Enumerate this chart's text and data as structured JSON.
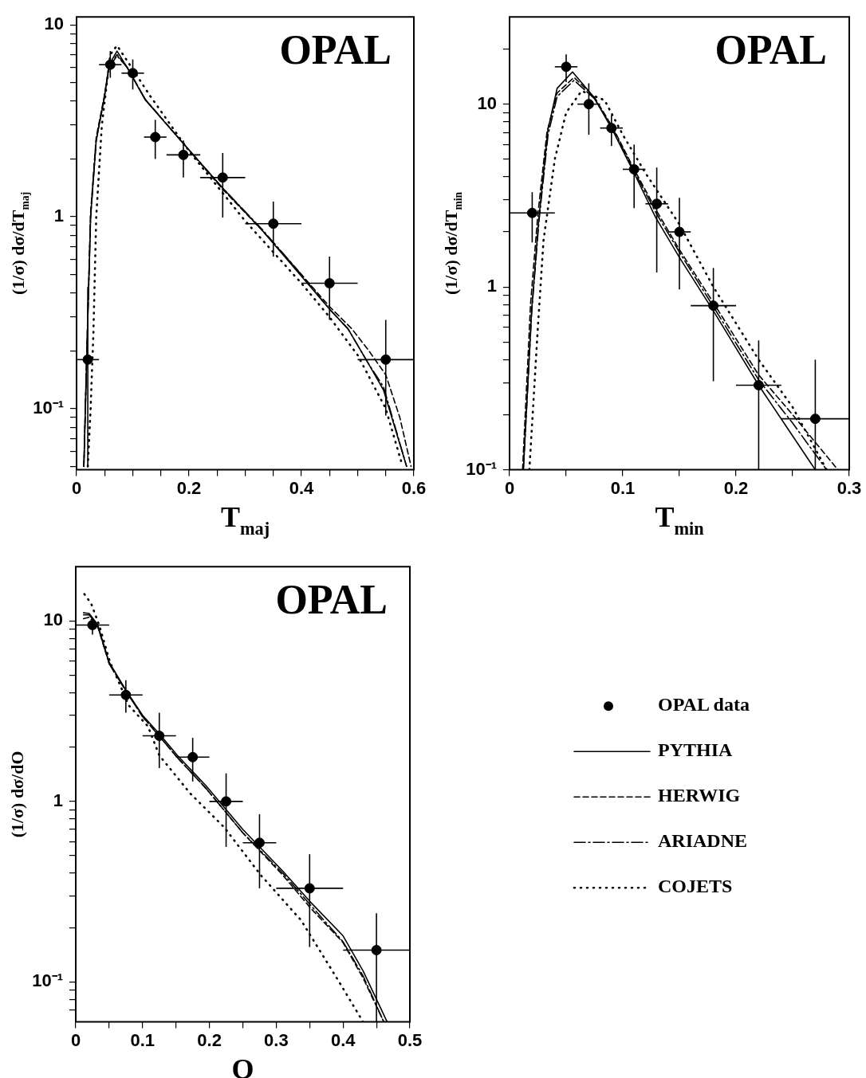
{
  "chart_data": [
    {
      "type": "line",
      "xlabel": "T$_{maj}$",
      "ylabel": "(1/σ) dσ/dT$_{maj}$",
      "annotations": [
        "OPAL"
      ],
      "log": "y",
      "xlim": [
        0,
        0.6
      ],
      "ylim": [
        0.048,
        11
      ],
      "xticks": [
        0,
        {
          "value": 0.05,
          "label": null
        },
        {
          "value": 0.1,
          "label": null
        },
        {
          "value": 0.15,
          "label": null
        },
        0.2,
        {
          "value": 0.25,
          "label": null
        },
        {
          "value": 0.3,
          "label": null
        },
        {
          "value": 0.35,
          "label": null
        },
        0.4,
        {
          "value": 0.45,
          "label": null
        },
        {
          "value": 0.5,
          "label": null
        },
        {
          "value": 0.55,
          "label": null
        },
        0.6
      ],
      "yticks": [
        {
          "value": 0.05,
          "label": null
        },
        {
          "value": 0.06,
          "label": null
        },
        {
          "value": 0.07,
          "label": null
        },
        {
          "value": 0.08,
          "label": null
        },
        {
          "value": 0.09,
          "label": null
        },
        {
          "value": 0.1,
          "label": "10⁻¹"
        },
        {
          "value": 0.2,
          "label": null
        },
        {
          "value": 0.3,
          "label": null
        },
        {
          "value": 0.4,
          "label": null
        },
        {
          "value": 0.5,
          "label": null
        },
        {
          "value": 0.6,
          "label": null
        },
        {
          "value": 0.7,
          "label": null
        },
        {
          "value": 0.8,
          "label": null
        },
        {
          "value": 0.9,
          "label": null
        },
        {
          "value": 1,
          "label": "1"
        },
        {
          "value": 2,
          "label": null
        },
        {
          "value": 3,
          "label": null
        },
        {
          "value": 4,
          "label": null
        },
        {
          "value": 5,
          "label": null
        },
        {
          "value": 6,
          "label": null
        },
        {
          "value": 7,
          "label": null
        },
        {
          "value": 8,
          "label": null
        },
        {
          "value": 9,
          "label": null
        },
        {
          "value": 10,
          "label": "10"
        }
      ],
      "series": [
        {
          "type": "scatter",
          "marker": "circle",
          "color": "#000000",
          "x": [
            0.02,
            0.06,
            0.1,
            0.14,
            0.19,
            0.26,
            0.35,
            0.45,
            0.55
          ],
          "values": [
            0.18,
            6.2,
            5.6,
            2.6,
            2.1,
            1.6,
            0.92,
            0.45,
            0.18
          ],
          "errors": [
            [
              0.05,
              0.43
            ],
            [
              5.3,
              7.3
            ],
            [
              4.6,
              6.6
            ],
            [
              2.0,
              3.2
            ],
            [
              1.6,
              2.5
            ],
            [
              0.99,
              2.15
            ],
            [
              0.62,
              1.2
            ],
            [
              0.29,
              0.62
            ],
            [
              0.092,
              0.29
            ]
          ],
          "xerrors": [
            [
              0,
              0.04
            ],
            [
              0.04,
              0.08
            ],
            [
              0.08,
              0.12
            ],
            [
              0.12,
              0.16
            ],
            [
              0.16,
              0.22
            ],
            [
              0.22,
              0.3
            ],
            [
              0.3,
              0.4
            ],
            [
              0.4,
              0.5
            ],
            [
              0.5,
              0.6
            ]
          ]
        },
        {
          "line_style": "solid",
          "color": "#000000",
          "x": [
            0.013,
            0.018,
            0.025,
            0.035,
            0.049,
            0.058,
            0.072,
            0.09,
            0.122,
            0.18,
            0.259,
            0.33,
            0.39,
            0.45,
            0.483,
            0.52,
            0.546,
            0.587
          ],
          "values": [
            0.05,
            0.18,
            1.0,
            2.5,
            4.1,
            6.2,
            7.3,
            6.0,
            4.07,
            2.6,
            1.42,
            0.85,
            0.53,
            0.33,
            0.26,
            0.17,
            0.125,
            0.05
          ]
        },
        {
          "line_style": "dashed",
          "color": "#000000",
          "x": [
            0.013,
            0.018,
            0.025,
            0.035,
            0.049,
            0.058,
            0.072,
            0.09,
            0.122,
            0.18,
            0.259,
            0.33,
            0.39,
            0.45,
            0.49,
            0.52,
            0.55,
            0.575,
            0.595
          ],
          "values": [
            0.05,
            0.19,
            1.05,
            2.6,
            4.2,
            6.1,
            7.0,
            6.0,
            4.1,
            2.6,
            1.4,
            0.85,
            0.54,
            0.34,
            0.26,
            0.2,
            0.15,
            0.09,
            0.05
          ]
        },
        {
          "line_style": "dashdot",
          "color": "#000000",
          "x": [
            0.013,
            0.018,
            0.025,
            0.035,
            0.049,
            0.058,
            0.072,
            0.09,
            0.122,
            0.18,
            0.259,
            0.33,
            0.39,
            0.45,
            0.483,
            0.52,
            0.546,
            0.587
          ],
          "values": [
            0.05,
            0.18,
            1.0,
            2.5,
            4.1,
            6.0,
            6.9,
            6.0,
            4.1,
            2.6,
            1.42,
            0.86,
            0.54,
            0.33,
            0.26,
            0.17,
            0.13,
            0.05
          ]
        },
        {
          "line_style": "dotted",
          "color": "#000000",
          "x": [
            0.02,
            0.025,
            0.03,
            0.035,
            0.045,
            0.06,
            0.072,
            0.09,
            0.13,
            0.2,
            0.3,
            0.4,
            0.45,
            0.5,
            0.55,
            0.58
          ],
          "values": [
            0.05,
            0.1,
            0.25,
            1.0,
            3.0,
            7.0,
            7.8,
            6.5,
            4.3,
            2.2,
            0.95,
            0.45,
            0.3,
            0.19,
            0.1,
            0.05
          ]
        }
      ]
    },
    {
      "type": "line",
      "xlabel": "T$_{min}$",
      "ylabel": "(1/σ) dσ/dT$_{min}$",
      "annotations": [
        "OPAL"
      ],
      "log": "y",
      "xlim": [
        0,
        0.3
      ],
      "ylim": [
        0.1,
        30
      ],
      "xticks": [
        0,
        {
          "value": 0.05,
          "label": null
        },
        0.1,
        {
          "value": 0.15,
          "label": null
        },
        0.2,
        {
          "value": 0.25,
          "label": null
        },
        0.3
      ],
      "yticks": [
        {
          "value": 0.1,
          "label": "10⁻¹"
        },
        {
          "value": 0.2,
          "label": null
        },
        {
          "value": 0.3,
          "label": null
        },
        {
          "value": 0.4,
          "label": null
        },
        {
          "value": 0.5,
          "label": null
        },
        {
          "value": 0.6,
          "label": null
        },
        {
          "value": 0.7,
          "label": null
        },
        {
          "value": 0.8,
          "label": null
        },
        {
          "value": 0.9,
          "label": null
        },
        {
          "value": 1,
          "label": "1"
        },
        {
          "value": 2,
          "label": null
        },
        {
          "value": 3,
          "label": null
        },
        {
          "value": 4,
          "label": null
        },
        {
          "value": 5,
          "label": null
        },
        {
          "value": 6,
          "label": null
        },
        {
          "value": 7,
          "label": null
        },
        {
          "value": 8,
          "label": null
        },
        {
          "value": 9,
          "label": null
        },
        {
          "value": 10,
          "label": "10"
        },
        {
          "value": 20,
          "label": null
        }
      ],
      "series": [
        {
          "type": "scatter",
          "marker": "circle",
          "color": "#000000",
          "x": [
            0.02,
            0.05,
            0.07,
            0.09,
            0.11,
            0.13,
            0.15,
            0.18,
            0.22,
            0.27
          ],
          "values": [
            2.54,
            16,
            10,
            7.4,
            4.4,
            2.85,
            2.0,
            0.79,
            0.29,
            0.19
          ],
          "errors": [
            [
              1.75,
              3.3
            ],
            [
              13.2,
              18.7
            ],
            [
              6.8,
              13
            ],
            [
              5.9,
              8.7
            ],
            [
              2.7,
              6.0
            ],
            [
              1.2,
              4.5
            ],
            [
              0.97,
              3.07
            ],
            [
              0.305,
              1.27
            ],
            [
              0.1,
              0.51
            ],
            [
              0.1,
              0.4
            ]
          ],
          "xerrors": [
            [
              0,
              0.04
            ],
            [
              0.04,
              0.06
            ],
            [
              0.06,
              0.08
            ],
            [
              0.08,
              0.1
            ],
            [
              0.1,
              0.12
            ],
            [
              0.12,
              0.14
            ],
            [
              0.14,
              0.16
            ],
            [
              0.16,
              0.2
            ],
            [
              0.2,
              0.24
            ],
            [
              0.24,
              0.3
            ]
          ]
        },
        {
          "line_style": "solid",
          "color": "#000000",
          "x": [
            0.0122,
            0.0195,
            0.0257,
            0.0338,
            0.042,
            0.0556,
            0.0745,
            0.091,
            0.11,
            0.129,
            0.15,
            0.18,
            0.22,
            0.27
          ],
          "values": [
            0.1,
            0.74,
            2.3,
            7.2,
            12.2,
            15,
            10.9,
            7.2,
            4.2,
            2.4,
            1.45,
            0.74,
            0.29,
            0.1
          ]
        },
        {
          "line_style": "dashed",
          "color": "#000000",
          "x": [
            0.0115,
            0.0185,
            0.025,
            0.033,
            0.042,
            0.057,
            0.075,
            0.092,
            0.11,
            0.13,
            0.15,
            0.18,
            0.22,
            0.25,
            0.29
          ],
          "values": [
            0.1,
            0.8,
            2.5,
            7.0,
            11.5,
            14,
            10.9,
            7.3,
            4.4,
            2.6,
            1.6,
            0.82,
            0.33,
            0.2,
            0.1
          ]
        },
        {
          "line_style": "dashdot",
          "color": "#000000",
          "x": [
            0.0122,
            0.0195,
            0.026,
            0.034,
            0.042,
            0.057,
            0.075,
            0.092,
            0.11,
            0.13,
            0.15,
            0.18,
            0.22,
            0.25,
            0.28
          ],
          "values": [
            0.1,
            0.72,
            2.3,
            6.8,
            11,
            13.5,
            10.7,
            7.2,
            4.3,
            2.5,
            1.55,
            0.78,
            0.31,
            0.18,
            0.1
          ]
        },
        {
          "line_style": "dotted",
          "color": "#000000",
          "x": [
            0.0175,
            0.025,
            0.03,
            0.04,
            0.05,
            0.0636,
            0.084,
            0.1,
            0.12,
            0.15,
            0.18,
            0.22,
            0.25,
            0.28
          ],
          "values": [
            0.1,
            0.6,
            1.8,
            5,
            9,
            11.8,
            10.5,
            6.8,
            4.2,
            2.2,
            1.0,
            0.4,
            0.22,
            0.1
          ]
        }
      ]
    },
    {
      "type": "line",
      "xlabel": "O",
      "ylabel": "(1/σ) dσ/dO",
      "annotations": [
        "OPAL"
      ],
      "log": "y",
      "legend": "right",
      "xlim": [
        0,
        0.5
      ],
      "ylim": [
        0.06,
        20
      ],
      "xticks": [
        0,
        {
          "value": 0.05,
          "label": null
        },
        0.1,
        {
          "value": 0.15,
          "label": null
        },
        0.2,
        {
          "value": 0.25,
          "label": null
        },
        0.3,
        {
          "value": 0.35,
          "label": null
        },
        0.4,
        {
          "value": 0.45,
          "label": null
        },
        0.5
      ],
      "yticks": [
        {
          "value": 0.07,
          "label": null
        },
        {
          "value": 0.08,
          "label": null
        },
        {
          "value": 0.09,
          "label": null
        },
        {
          "value": 0.1,
          "label": "10⁻¹"
        },
        {
          "value": 0.2,
          "label": null
        },
        {
          "value": 0.3,
          "label": null
        },
        {
          "value": 0.4,
          "label": null
        },
        {
          "value": 0.5,
          "label": null
        },
        {
          "value": 0.6,
          "label": null
        },
        {
          "value": 0.7,
          "label": null
        },
        {
          "value": 0.8,
          "label": null
        },
        {
          "value": 0.9,
          "label": null
        },
        {
          "value": 1,
          "label": "1"
        },
        {
          "value": 2,
          "label": null
        },
        {
          "value": 3,
          "label": null
        },
        {
          "value": 4,
          "label": null
        },
        {
          "value": 5,
          "label": null
        },
        {
          "value": 6,
          "label": null
        },
        {
          "value": 7,
          "label": null
        },
        {
          "value": 8,
          "label": null
        },
        {
          "value": 9,
          "label": null
        },
        {
          "value": 10,
          "label": "10"
        }
      ],
      "series": [
        {
          "type": "scatter",
          "name": "OPAL data",
          "marker": "circle",
          "color": "#000000",
          "x": [
            0.025,
            0.075,
            0.125,
            0.175,
            0.225,
            0.275,
            0.35,
            0.45
          ],
          "values": [
            9.5,
            3.89,
            2.31,
            1.76,
            1.0,
            0.59,
            0.33,
            0.15
          ],
          "errors": [
            [
              8.4,
              10.4
            ],
            [
              3.1,
              4.7
            ],
            [
              1.53,
              3.1
            ],
            [
              1.29,
              2.25
            ],
            [
              0.56,
              1.43
            ],
            [
              0.33,
              0.85
            ],
            [
              0.156,
              0.51
            ],
            [
              0.06,
              0.24
            ]
          ],
          "xerrors": [
            [
              0,
              0.05
            ],
            [
              0.05,
              0.1
            ],
            [
              0.1,
              0.15
            ],
            [
              0.15,
              0.2
            ],
            [
              0.2,
              0.25
            ],
            [
              0.25,
              0.3
            ],
            [
              0.3,
              0.4
            ],
            [
              0.4,
              0.5
            ]
          ]
        },
        {
          "name": "PYTHIA",
          "line_style": "solid",
          "color": "#000000",
          "x": [
            0.0116,
            0.02,
            0.0325,
            0.05,
            0.075,
            0.1,
            0.125,
            0.152,
            0.195,
            0.25,
            0.31,
            0.35,
            0.4,
            0.43,
            0.466
          ],
          "values": [
            11.1,
            11,
            9.6,
            5.9,
            4.14,
            3.0,
            2.37,
            1.8,
            1.22,
            0.7,
            0.41,
            0.28,
            0.18,
            0.115,
            0.06
          ]
        },
        {
          "name": "HERWIG",
          "line_style": "dashed",
          "color": "#000000",
          "x": [
            0.0116,
            0.02,
            0.0325,
            0.05,
            0.075,
            0.1,
            0.125,
            0.152,
            0.195,
            0.25,
            0.31,
            0.35,
            0.4,
            0.43,
            0.461
          ],
          "values": [
            10.3,
            10.5,
            9.4,
            5.8,
            4.1,
            2.95,
            2.3,
            1.75,
            1.18,
            0.67,
            0.39,
            0.26,
            0.165,
            0.105,
            0.06
          ]
        },
        {
          "name": "ARIADNE",
          "line_style": "dashdot",
          "color": "#000000",
          "x": [
            0.0116,
            0.02,
            0.0325,
            0.05,
            0.075,
            0.1,
            0.125,
            0.152,
            0.195,
            0.25,
            0.31,
            0.35,
            0.4,
            0.43,
            0.461
          ],
          "values": [
            10.8,
            10.8,
            9.5,
            5.8,
            4.1,
            2.95,
            2.3,
            1.75,
            1.18,
            0.67,
            0.4,
            0.27,
            0.167,
            0.108,
            0.06
          ]
        },
        {
          "name": "COJETS",
          "line_style": "dotted",
          "color": "#000000",
          "x": [
            0.0129,
            0.023,
            0.035,
            0.051,
            0.0795,
            0.108,
            0.125,
            0.172,
            0.222,
            0.277,
            0.337,
            0.392,
            0.43
          ],
          "values": [
            14.1,
            12.5,
            9.5,
            5.96,
            3.4,
            2.61,
            1.8,
            1.1,
            0.72,
            0.39,
            0.22,
            0.103,
            0.06
          ]
        }
      ]
    }
  ]
}
